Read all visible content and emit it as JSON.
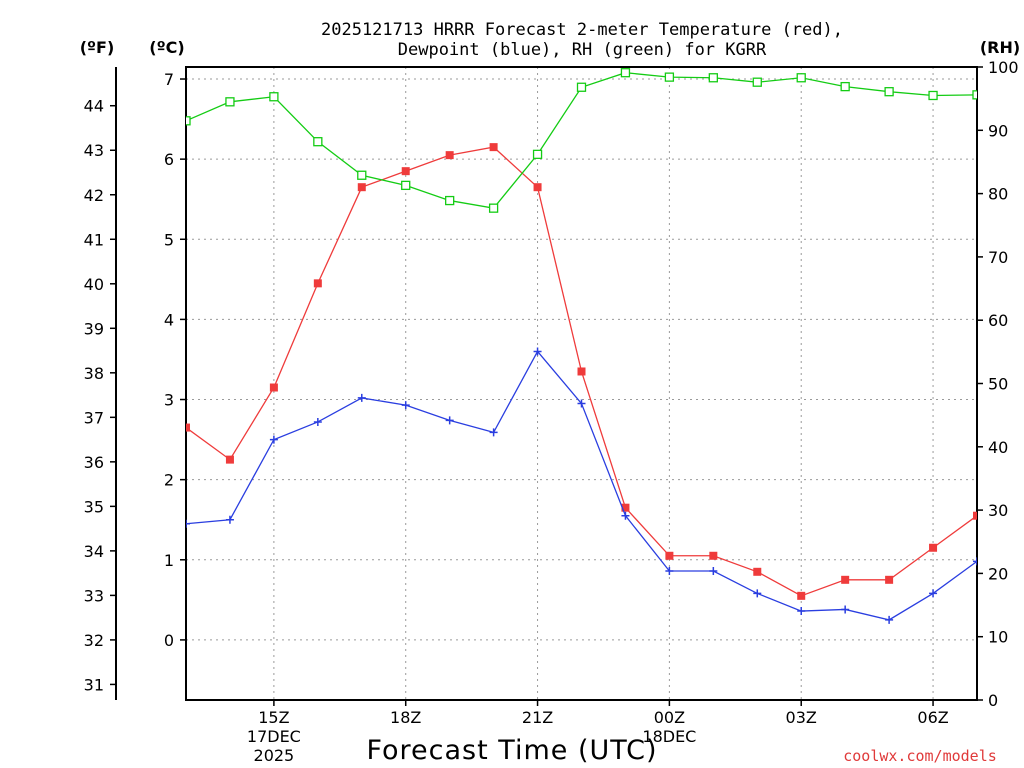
{
  "chart_data": {
    "type": "line",
    "title": "2025121713 HRRR Forecast 2-meter Temperature (red),",
    "subtitle": "Dewpoint (blue), RH (green) for KGRR",
    "xlabel": "Forecast Time (UTC)",
    "credit": "coolwx.com/models",
    "units": {
      "fahrenheit": "(ºF)",
      "celsius": "(ºC)",
      "rh": "(RH)"
    },
    "x_hours": [
      13,
      14,
      15,
      16,
      17,
      18,
      19,
      20,
      21,
      22,
      23,
      24,
      25,
      26,
      27,
      28,
      29,
      30,
      31
    ],
    "x_range": [
      13,
      31
    ],
    "x_ticks": [
      {
        "hour": 15,
        "label": "15Z",
        "sub1": "17DEC",
        "sub2": "2025"
      },
      {
        "hour": 18,
        "label": "18Z"
      },
      {
        "hour": 21,
        "label": "21Z"
      },
      {
        "hour": 24,
        "label": "00Z",
        "sub1": "18DEC"
      },
      {
        "hour": 27,
        "label": "03Z"
      },
      {
        "hour": 30,
        "label": "06Z"
      }
    ],
    "y_celsius_range": [
      -0.75,
      7.15
    ],
    "y_celsius_ticks": [
      "0",
      "1",
      "2",
      "3",
      "4",
      "5",
      "6",
      "7"
    ],
    "y_fahrenheit_ticks": [
      "31",
      "32",
      "33",
      "34",
      "35",
      "36",
      "37",
      "38",
      "39",
      "40",
      "41",
      "42",
      "43",
      "44"
    ],
    "y_rh_range": [
      0,
      100
    ],
    "y_rh_ticks": [
      "0",
      "10",
      "20",
      "30",
      "40",
      "50",
      "60",
      "70",
      "80",
      "90",
      "100"
    ],
    "grid": true,
    "series": [
      {
        "name": "2-meter Temperature",
        "axis": "celsius",
        "color": "#ef3b3b",
        "marker": "filled-square",
        "values": [
          2.65,
          2.25,
          3.15,
          4.45,
          5.65,
          5.85,
          6.05,
          6.15,
          5.65,
          3.35,
          1.65,
          1.05,
          1.05,
          0.85,
          0.55,
          0.75,
          0.75,
          1.15,
          1.55
        ]
      },
      {
        "name": "Dewpoint",
        "axis": "celsius",
        "color": "#2a3ee0",
        "marker": "plus",
        "values": [
          1.45,
          1.5,
          2.5,
          2.72,
          3.02,
          2.93,
          2.74,
          2.59,
          3.6,
          2.95,
          1.55,
          0.86,
          0.86,
          0.58,
          0.36,
          0.38,
          0.25,
          0.58,
          0.98
        ]
      },
      {
        "name": "RH",
        "axis": "rh",
        "color": "#14cc14",
        "marker": "open-square",
        "values": [
          91.5,
          94.5,
          95.3,
          88.2,
          82.9,
          81.3,
          78.9,
          77.7,
          86.2,
          96.8,
          99.1,
          98.4,
          98.3,
          97.6,
          98.3,
          96.9,
          96.1,
          95.5,
          95.6
        ]
      }
    ]
  }
}
